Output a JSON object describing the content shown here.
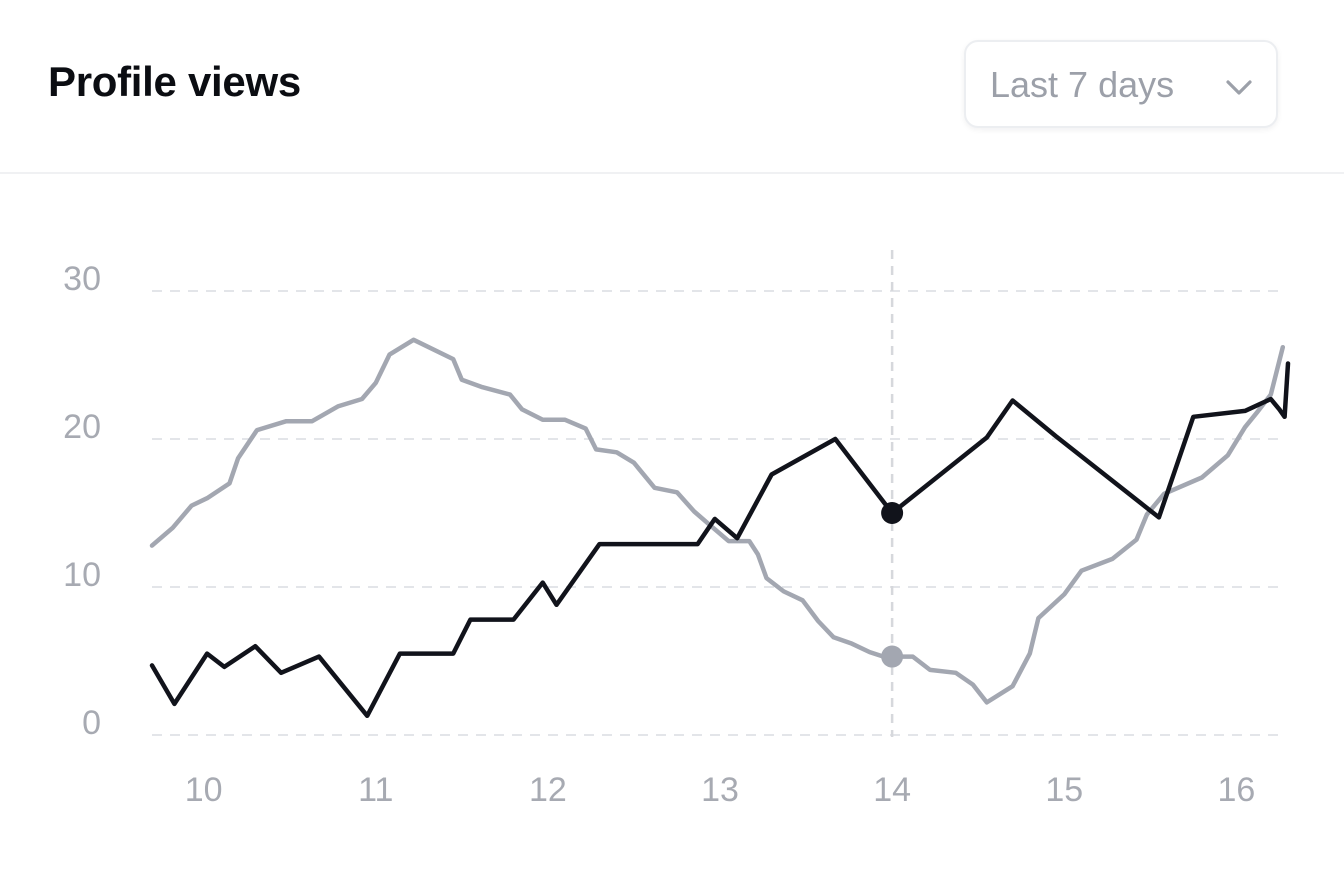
{
  "header": {
    "title": "Profile views",
    "range_select": {
      "value": "Last 7 days",
      "icon": "chevron-down-icon"
    }
  },
  "colors": {
    "primary_series": "#11131b",
    "secondary_series": "#a3a7b1",
    "grid": "#e3e5e9",
    "tick": "#a7aab2"
  },
  "chart_data": {
    "type": "line",
    "xlim": [
      9.7,
      16.3
    ],
    "ylim": [
      0,
      30
    ],
    "x_ticks": [
      10,
      11,
      12,
      13,
      14,
      15,
      16
    ],
    "x_tick_labels": [
      "10",
      "11",
      "12",
      "13",
      "14",
      "15",
      "16"
    ],
    "y_ticks": [
      0,
      10,
      20,
      30
    ],
    "y_tick_labels": [
      "0",
      "10",
      "20",
      "30"
    ],
    "grid": "horizontal dashed",
    "legend": "none",
    "highlight_x": 14,
    "series": [
      {
        "role": "primary",
        "points": [
          [
            9.7,
            4.7
          ],
          [
            9.83,
            2.1
          ],
          [
            10.02,
            5.5
          ],
          [
            10.12,
            4.6
          ],
          [
            10.3,
            6.0
          ],
          [
            10.45,
            4.2
          ],
          [
            10.67,
            5.3
          ],
          [
            10.95,
            1.3
          ],
          [
            11.14,
            5.5
          ],
          [
            11.45,
            5.5
          ],
          [
            11.55,
            7.8
          ],
          [
            11.8,
            7.8
          ],
          [
            11.97,
            10.3
          ],
          [
            12.05,
            8.8
          ],
          [
            12.3,
            12.9
          ],
          [
            12.87,
            12.9
          ],
          [
            12.97,
            14.6
          ],
          [
            13.1,
            13.3
          ],
          [
            13.3,
            17.6
          ],
          [
            13.67,
            20.0
          ],
          [
            14.0,
            15.0
          ],
          [
            14.55,
            20.1
          ],
          [
            14.7,
            22.6
          ],
          [
            14.95,
            20.2
          ],
          [
            15.55,
            14.7
          ],
          [
            15.75,
            21.5
          ],
          [
            16.05,
            21.9
          ],
          [
            16.2,
            22.7
          ],
          [
            16.25,
            22.0
          ],
          [
            16.28,
            21.5
          ],
          [
            16.3,
            25.1
          ]
        ],
        "highlight_value": 15.0
      },
      {
        "role": "secondary",
        "points": [
          [
            9.7,
            12.8
          ],
          [
            9.82,
            14.0
          ],
          [
            9.93,
            15.5
          ],
          [
            10.02,
            16.0
          ],
          [
            10.15,
            17.0
          ],
          [
            10.2,
            18.7
          ],
          [
            10.31,
            20.6
          ],
          [
            10.48,
            21.2
          ],
          [
            10.63,
            21.2
          ],
          [
            10.78,
            22.2
          ],
          [
            10.92,
            22.7
          ],
          [
            11.0,
            23.8
          ],
          [
            11.08,
            25.7
          ],
          [
            11.22,
            26.7
          ],
          [
            11.45,
            25.4
          ],
          [
            11.5,
            24.0
          ],
          [
            11.62,
            23.5
          ],
          [
            11.78,
            23.0
          ],
          [
            11.85,
            22.0
          ],
          [
            11.97,
            21.3
          ],
          [
            12.1,
            21.3
          ],
          [
            12.22,
            20.7
          ],
          [
            12.28,
            19.3
          ],
          [
            12.4,
            19.1
          ],
          [
            12.5,
            18.4
          ],
          [
            12.62,
            16.7
          ],
          [
            12.75,
            16.4
          ],
          [
            12.85,
            15.1
          ],
          [
            12.93,
            14.3
          ],
          [
            13.05,
            13.1
          ],
          [
            13.17,
            13.1
          ],
          [
            13.22,
            12.2
          ],
          [
            13.27,
            10.6
          ],
          [
            13.37,
            9.7
          ],
          [
            13.48,
            9.1
          ],
          [
            13.57,
            7.7
          ],
          [
            13.66,
            6.6
          ],
          [
            13.76,
            6.2
          ],
          [
            13.87,
            5.6
          ],
          [
            13.95,
            5.3
          ],
          [
            14.12,
            5.3
          ],
          [
            14.22,
            4.4
          ],
          [
            14.37,
            4.2
          ],
          [
            14.47,
            3.4
          ],
          [
            14.55,
            2.2
          ],
          [
            14.7,
            3.3
          ],
          [
            14.8,
            5.5
          ],
          [
            14.85,
            7.9
          ],
          [
            15.0,
            9.5
          ],
          [
            15.1,
            11.1
          ],
          [
            15.28,
            11.9
          ],
          [
            15.42,
            13.2
          ],
          [
            15.48,
            14.9
          ],
          [
            15.58,
            16.3
          ],
          [
            15.8,
            17.4
          ],
          [
            15.95,
            18.9
          ],
          [
            16.05,
            20.8
          ],
          [
            16.12,
            21.8
          ],
          [
            16.2,
            23.0
          ],
          [
            16.27,
            26.2
          ]
        ],
        "highlight_value": 5.3
      }
    ]
  }
}
